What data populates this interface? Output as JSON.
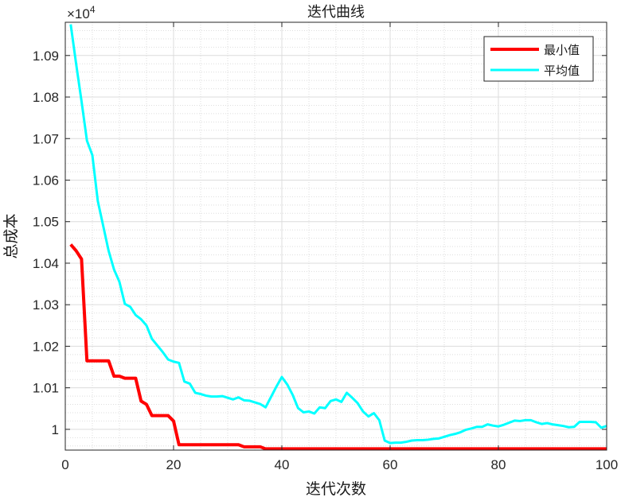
{
  "chart_data": {
    "type": "line",
    "title": "迭代曲线",
    "xlabel": "迭代次数",
    "ylabel": "总成本",
    "exponent_label": "×10",
    "exponent_power": "4",
    "xlim": [
      0,
      100
    ],
    "ylim": [
      9995,
      10098
    ],
    "x_ticks": [
      0,
      20,
      40,
      60,
      80,
      100
    ],
    "x_tick_labels": [
      "0",
      "20",
      "40",
      "60",
      "80",
      "100"
    ],
    "y_ticks": [
      10000,
      10010,
      10020,
      10030,
      10040,
      10050,
      10060,
      10070,
      10080,
      10090
    ],
    "y_tick_labels": [
      "1",
      "1.01",
      "1.02",
      "1.03",
      "1.04",
      "1.05",
      "1.06",
      "1.07",
      "1.08",
      "1.09"
    ],
    "grid": true,
    "minor_grid": true,
    "legend_position": "top-right",
    "series": [
      {
        "name": "最小值",
        "color": "#ff0000",
        "x": [
          1,
          2,
          3,
          4,
          5,
          6,
          7,
          8,
          9,
          10,
          11,
          12,
          13,
          14,
          15,
          16,
          17,
          18,
          19,
          20,
          21,
          22,
          23,
          24,
          25,
          26,
          27,
          28,
          29,
          30,
          31,
          32,
          33,
          34,
          35,
          36,
          37,
          38,
          39,
          40,
          50,
          60,
          70,
          80,
          90,
          100
        ],
        "y": [
          10044.5,
          10043,
          10041,
          10016.5,
          10016.5,
          10016.5,
          10016.5,
          10016.5,
          10012.8,
          10012.8,
          10012.3,
          10012.3,
          10012.3,
          10006.8,
          10006,
          10003.3,
          10003.3,
          10003.3,
          10003.3,
          10002,
          9996.3,
          9996.3,
          9996.3,
          9996.3,
          9996.3,
          9996.3,
          9996.3,
          9996.3,
          9996.3,
          9996.3,
          9996.3,
          9996.3,
          9995.8,
          9995.8,
          9995.8,
          9995.8,
          9995.3,
          9995.3,
          9995.3,
          9995.3,
          9995.3,
          9995.3,
          9995.3,
          9995.3,
          9995.3,
          9995.3
        ]
      },
      {
        "name": "平均值",
        "color": "#00ffff",
        "x": [
          1,
          2,
          3,
          4,
          5,
          6,
          7,
          8,
          9,
          10,
          11,
          12,
          13,
          14,
          15,
          16,
          17,
          18,
          19,
          20,
          21,
          22,
          23,
          24,
          25,
          26,
          27,
          28,
          29,
          30,
          31,
          32,
          33,
          34,
          35,
          36,
          37,
          38,
          39,
          40,
          41,
          42,
          43,
          44,
          45,
          46,
          47,
          48,
          49,
          50,
          51,
          52,
          53,
          54,
          55,
          56,
          57,
          58,
          59,
          60,
          61,
          62,
          63,
          64,
          65,
          66,
          67,
          68,
          69,
          70,
          71,
          72,
          73,
          74,
          75,
          76,
          77,
          78,
          79,
          80,
          81,
          82,
          83,
          84,
          85,
          86,
          87,
          88,
          89,
          90,
          91,
          92,
          93,
          94,
          95,
          96,
          97,
          98,
          99,
          100
        ],
        "y": [
          10097.5,
          10088,
          10079,
          10069.5,
          10066,
          10055,
          10049,
          10043,
          10038.5,
          10035.5,
          10030.2,
          10029.5,
          10027.5,
          10026.5,
          10025,
          10021.8,
          10020.2,
          10018.6,
          10016.8,
          10016.3,
          10016,
          10011.5,
          10011,
          10008.8,
          10008.5,
          10008.1,
          10007.9,
          10007.9,
          10008,
          10007.6,
          10007.2,
          10007.7,
          10007,
          10006.9,
          10006.5,
          10006.1,
          10005.3,
          10007.8,
          10010.3,
          10012.6,
          10010.8,
          10008.3,
          10005.1,
          10004.1,
          10004.3,
          10003.8,
          10005.3,
          10005.1,
          10006.8,
          10007.2,
          10006.6,
          10008.8,
          10007.6,
          10006.3,
          10004.3,
          10003.1,
          10003.9,
          10002.2,
          9997.3,
          9996.7,
          9996.8,
          9996.8,
          9997,
          9997.3,
          9997.4,
          9997.4,
          9997.5,
          9997.7,
          9997.8,
          9998.2,
          9998.6,
          9998.9,
          9999.3,
          9999.9,
          10000.2,
          10000.6,
          10000.6,
          10001.2,
          10000.9,
          10000.7,
          10001.1,
          10001.6,
          10002.1,
          10002,
          10002.2,
          10002.2,
          10001.7,
          10001.3,
          10001.5,
          10001.2,
          10001,
          10000.8,
          10000.5,
          10000.6,
          10001.8,
          10001.8,
          10001.8,
          10001.7,
          10000.4,
          10000.8
        ]
      }
    ]
  }
}
